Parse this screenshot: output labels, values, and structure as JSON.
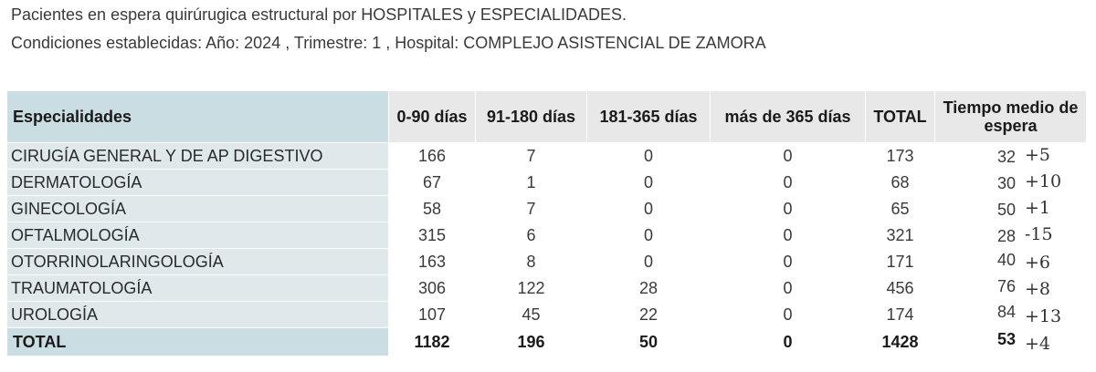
{
  "caption": {
    "line1": "Pacientes en espera quirúrugica estructural por HOSPITALES y ESPECIALIDADES.",
    "line2": "Condiciones establecidas: Año: 2024 , Trimestre: 1 , Hospital: COMPLEJO ASISTENCIAL DE ZAMORA"
  },
  "table": {
    "headers": [
      "Especialidades",
      "0-90 días",
      "91-180 días",
      "181-365 días",
      "más de 365 días",
      "TOTAL",
      "Tiempo medio de espera"
    ],
    "rows": [
      {
        "especialidad": "CIRUGÍA GENERAL Y DE AP DIGESTIVO",
        "d0_90": "166",
        "d91_180": "7",
        "d181_365": "0",
        "mas365": "0",
        "total": "173",
        "tiempo": "32",
        "variacion": "+5"
      },
      {
        "especialidad": "DERMATOLOGÍA",
        "d0_90": "67",
        "d91_180": "1",
        "d181_365": "0",
        "mas365": "0",
        "total": "68",
        "tiempo": "30",
        "variacion": "+10"
      },
      {
        "especialidad": "GINECOLOGÍA",
        "d0_90": "58",
        "d91_180": "7",
        "d181_365": "0",
        "mas365": "0",
        "total": "65",
        "tiempo": "50",
        "variacion": "+1"
      },
      {
        "especialidad": "OFTALMOLOGÍA",
        "d0_90": "315",
        "d91_180": "6",
        "d181_365": "0",
        "mas365": "0",
        "total": "321",
        "tiempo": "28",
        "variacion": "-15"
      },
      {
        "especialidad": "OTORRINOLARINGOLOGÍA",
        "d0_90": "163",
        "d91_180": "8",
        "d181_365": "0",
        "mas365": "0",
        "total": "171",
        "tiempo": "40",
        "variacion": "+6"
      },
      {
        "especialidad": "TRAUMATOLOGÍA",
        "d0_90": "306",
        "d91_180": "122",
        "d181_365": "28",
        "mas365": "0",
        "total": "456",
        "tiempo": "76",
        "variacion": "+8"
      },
      {
        "especialidad": "UROLOGÍA",
        "d0_90": "107",
        "d91_180": "45",
        "d181_365": "22",
        "mas365": "0",
        "total": "174",
        "tiempo": "84",
        "variacion": "+13"
      }
    ],
    "total": {
      "especialidad": "TOTAL",
      "d0_90": "1182",
      "d91_180": "196",
      "d181_365": "50",
      "mas365": "0",
      "total": "1428",
      "tiempo": "53",
      "variacion": "+4"
    }
  }
}
